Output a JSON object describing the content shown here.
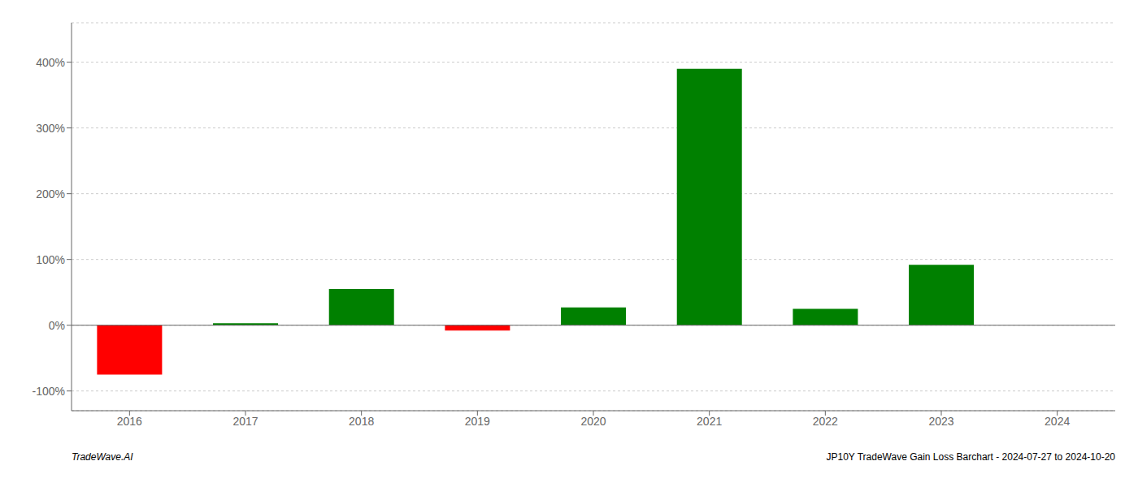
{
  "chart_data": {
    "type": "bar",
    "categories": [
      "2016",
      "2017",
      "2018",
      "2019",
      "2020",
      "2021",
      "2022",
      "2023",
      "2024"
    ],
    "values": [
      -75,
      3,
      55,
      -8,
      27,
      390,
      25,
      92,
      0
    ],
    "colors": [
      "#ff0000",
      "#008000",
      "#008000",
      "#ff0000",
      "#008000",
      "#008000",
      "#008000",
      "#008000",
      "#008000"
    ],
    "ylim": [
      -130,
      460
    ],
    "yticks": [
      {
        "value": -100,
        "label": "-100%"
      },
      {
        "value": 0,
        "label": "0%"
      },
      {
        "value": 100,
        "label": "100%"
      },
      {
        "value": 200,
        "label": "200%"
      },
      {
        "value": 300,
        "label": "300%"
      },
      {
        "value": 400,
        "label": "400%"
      }
    ],
    "grid": true,
    "annotations": [
      "TradeWave.AI",
      "JP10Y TradeWave Gain Loss Barchart - 2024-07-27 to 2024-10-20"
    ]
  }
}
